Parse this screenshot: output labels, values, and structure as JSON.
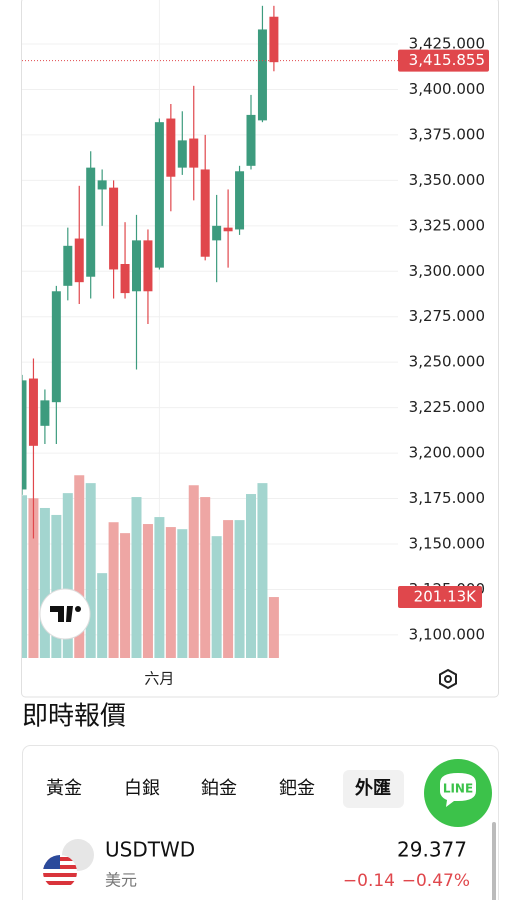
{
  "chart_data": {
    "type": "candlestick",
    "categories": [
      null,
      null,
      null,
      null,
      null,
      null,
      null,
      null,
      null,
      null,
      null,
      null,
      "六月",
      null,
      null,
      null,
      null,
      null,
      null,
      null,
      null,
      null,
      null
    ],
    "open": [
      3180,
      3241,
      3215,
      3228,
      3292,
      3318,
      3297,
      3345,
      3346,
      3304,
      3289,
      3317,
      3302,
      3384,
      3357,
      3373,
      3356,
      3317,
      3324,
      3323,
      3358,
      3383,
      3440
    ],
    "high": [
      3243,
      3252,
      3235,
      3292,
      3324,
      3347,
      3366,
      3356,
      3350,
      3327,
      3331,
      3323,
      3384,
      3392,
      3388,
      3402,
      3375,
      3342,
      3345,
      3358,
      3397,
      3446,
      3446
    ],
    "low": [
      3177,
      3153,
      3205,
      3205,
      3284,
      3282,
      3285,
      3325,
      3285,
      3285,
      3246,
      3271,
      3301,
      3333,
      3353,
      3339,
      3306,
      3294,
      3302,
      3320,
      3356,
      3382,
      3410
    ],
    "close": [
      3240,
      3204,
      3229,
      3289,
      3314,
      3294,
      3357,
      3350,
      3301,
      3288,
      3317,
      3289,
      3382,
      3352,
      3372,
      3357,
      3308,
      3325,
      3322,
      3355,
      3386,
      3433,
      3415
    ],
    "volume": [
      537,
      527,
      495,
      472,
      544,
      603,
      577,
      280,
      448,
      412,
      531,
      442,
      465,
      432,
      425,
      570,
      531,
      402,
      455,
      455,
      541,
      577,
      201.13
    ],
    "up_color": "#3d9b7e",
    "down_color": "#e0474c",
    "volume_up_color": "#a3d5cf",
    "volume_down_color": "#eea6a4",
    "ylim": [
      3087.3,
      3449.2
    ],
    "yticks": [
      {
        "value": 3100,
        "label": "3,100.000"
      },
      {
        "value": 3125,
        "label": "3,125.000"
      },
      {
        "value": 3150,
        "label": "3,150.000"
      },
      {
        "value": 3175,
        "label": "3,175.000"
      },
      {
        "value": 3200,
        "label": "3,200.000"
      },
      {
        "value": 3225,
        "label": "3,225.000"
      },
      {
        "value": 3250,
        "label": "3,250.000"
      },
      {
        "value": 3275,
        "label": "3,275.000"
      },
      {
        "value": 3300,
        "label": "3,300.000"
      },
      {
        "value": 3325,
        "label": "3,325.000"
      },
      {
        "value": 3350,
        "label": "3,350.000"
      },
      {
        "value": 3375,
        "label": "3,375.000"
      },
      {
        "value": 3400,
        "label": "3,400.000"
      },
      {
        "value": 3425,
        "label": "3,425.000"
      }
    ],
    "volume_ylim": [
      0,
      650
    ],
    "last_price": {
      "value": 3415.855,
      "label": "3,415.855"
    },
    "last_volume": {
      "value": 201.13,
      "label": "201.13K"
    },
    "grid": true
  },
  "quotes": {
    "title": "即時報價",
    "tabs": [
      "黃金",
      "白銀",
      "鉑金",
      "鈀金",
      "外匯"
    ],
    "active_tab": 4,
    "chat_button": "LINE",
    "rows": [
      {
        "symbol": "USDTWD",
        "name": "美元",
        "price": "29.377",
        "change": "−0.14",
        "change_percent": "−0.47%"
      }
    ]
  }
}
